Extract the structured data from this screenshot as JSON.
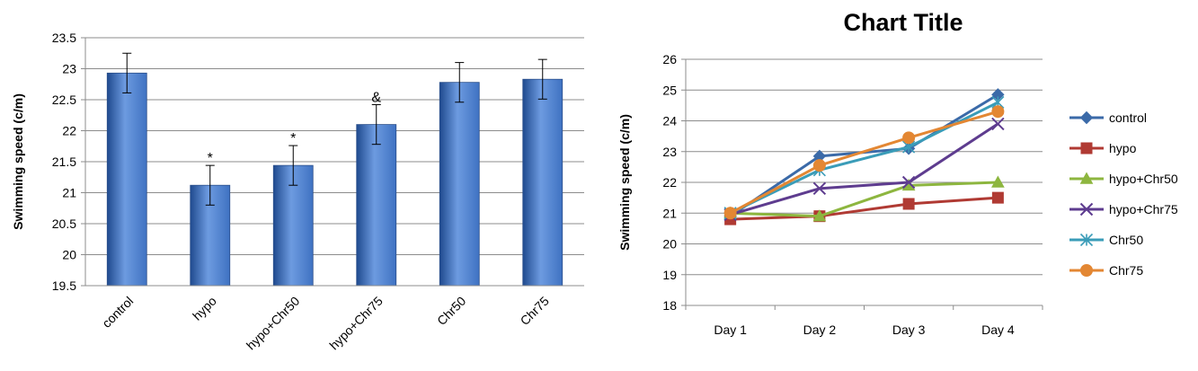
{
  "chart_data": [
    {
      "type": "bar",
      "title": "",
      "xlabel": "",
      "ylabel": "Swimming speed (c/m)",
      "ylim": [
        19.5,
        23.5
      ],
      "yticks": [
        19.5,
        20,
        20.5,
        21,
        21.5,
        22,
        22.5,
        23,
        23.5
      ],
      "grid": true,
      "legend": "none",
      "categories": [
        "control",
        "hypo",
        "hypo+Chr50",
        "hypo+Chr75",
        "Chr50",
        "Chr75"
      ],
      "values": [
        22.93,
        21.12,
        21.44,
        22.1,
        22.78,
        22.83
      ],
      "errors": [
        0.32,
        0.32,
        0.32,
        0.32,
        0.32,
        0.32
      ],
      "annotations": [
        "",
        "*",
        "*",
        "&",
        "",
        ""
      ],
      "colors": {
        "bar": "#3f72c2",
        "bar_dark": "#1f4a8f",
        "bar_light": "#6d9be0"
      }
    },
    {
      "type": "line",
      "title": "Chart Title",
      "xlabel": "",
      "ylabel": "Swimming speed (c/m)",
      "ylim": [
        18,
        26
      ],
      "yticks": [
        18,
        19,
        20,
        21,
        22,
        23,
        24,
        25,
        26
      ],
      "grid": true,
      "legend": "right",
      "categories": [
        "Day 1",
        "Day 2",
        "Day 3",
        "Day 4"
      ],
      "series": [
        {
          "name": "control",
          "values": [
            20.9,
            22.85,
            23.1,
            24.85
          ],
          "color": "#3b6aa8",
          "marker": "diamond"
        },
        {
          "name": "hypo",
          "values": [
            20.8,
            20.9,
            21.3,
            21.5
          ],
          "color": "#b03a33",
          "marker": "square"
        },
        {
          "name": "hypo+Chr50",
          "values": [
            21.0,
            20.9,
            21.9,
            22.0
          ],
          "color": "#8db63f",
          "marker": "triangle"
        },
        {
          "name": "hypo+Chr75",
          "values": [
            20.95,
            21.8,
            22.0,
            23.9
          ],
          "color": "#5e3c8f",
          "marker": "x"
        },
        {
          "name": "Chr50",
          "values": [
            21.0,
            22.4,
            23.15,
            24.6
          ],
          "color": "#3a9cb8",
          "marker": "star"
        },
        {
          "name": "Chr75",
          "values": [
            21.0,
            22.55,
            23.45,
            24.3
          ],
          "color": "#e38733",
          "marker": "circle"
        }
      ]
    }
  ]
}
